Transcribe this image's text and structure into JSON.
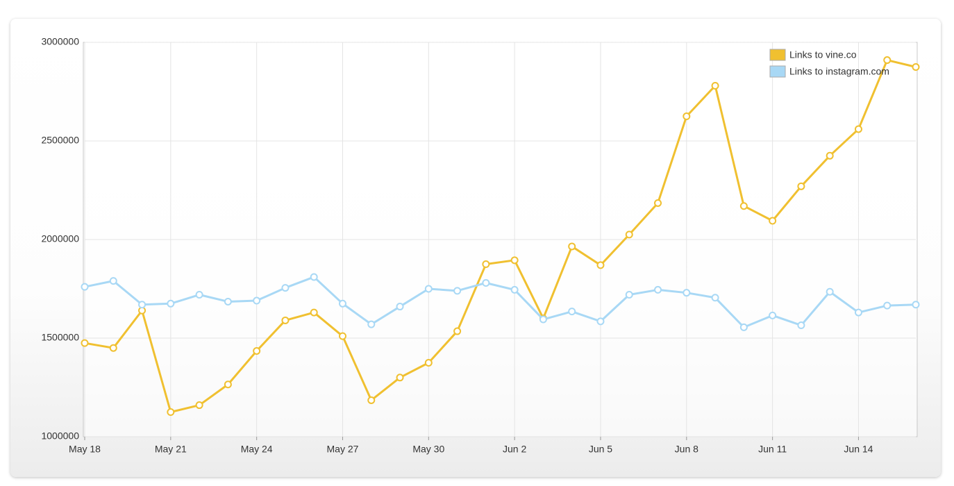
{
  "chart_data": {
    "type": "line",
    "categories": [
      "May 18",
      null,
      null,
      "May 21",
      null,
      null,
      "May 24",
      null,
      null,
      "May 27",
      null,
      null,
      "May 30",
      null,
      null,
      "Jun 2",
      null,
      null,
      "Jun 5",
      null,
      null,
      "Jun 8",
      null,
      null,
      "Jun 11",
      null,
      null,
      "Jun 14",
      null,
      null
    ],
    "series": [
      {
        "name": "Links to vine.co",
        "color": "#f0c030",
        "values": [
          1475000,
          1450000,
          1640000,
          1125000,
          1160000,
          1265000,
          1435000,
          1590000,
          1630000,
          1510000,
          1185000,
          1300000,
          1375000,
          1535000,
          1875000,
          1895000,
          1600000,
          1965000,
          1870000,
          2025000,
          2185000,
          2625000,
          2780000,
          2170000,
          2095000,
          2270000,
          2425000,
          2560000,
          2910000,
          2875000
        ]
      },
      {
        "name": "Links to instagram.com",
        "color": "#a8d8f5",
        "values": [
          1760000,
          1790000,
          1670000,
          1675000,
          1720000,
          1685000,
          1690000,
          1755000,
          1810000,
          1675000,
          1570000,
          1660000,
          1750000,
          1740000,
          1780000,
          1745000,
          1595000,
          1635000,
          1585000,
          1720000,
          1745000,
          1730000,
          1705000,
          1555000,
          1615000,
          1565000,
          1735000,
          1630000,
          1665000,
          1670000
        ]
      }
    ],
    "ylim": [
      1000000,
      3000000
    ],
    "yticks": [
      1000000,
      1500000,
      2000000,
      2500000,
      3000000
    ],
    "grid": true,
    "legend": "top-right"
  }
}
